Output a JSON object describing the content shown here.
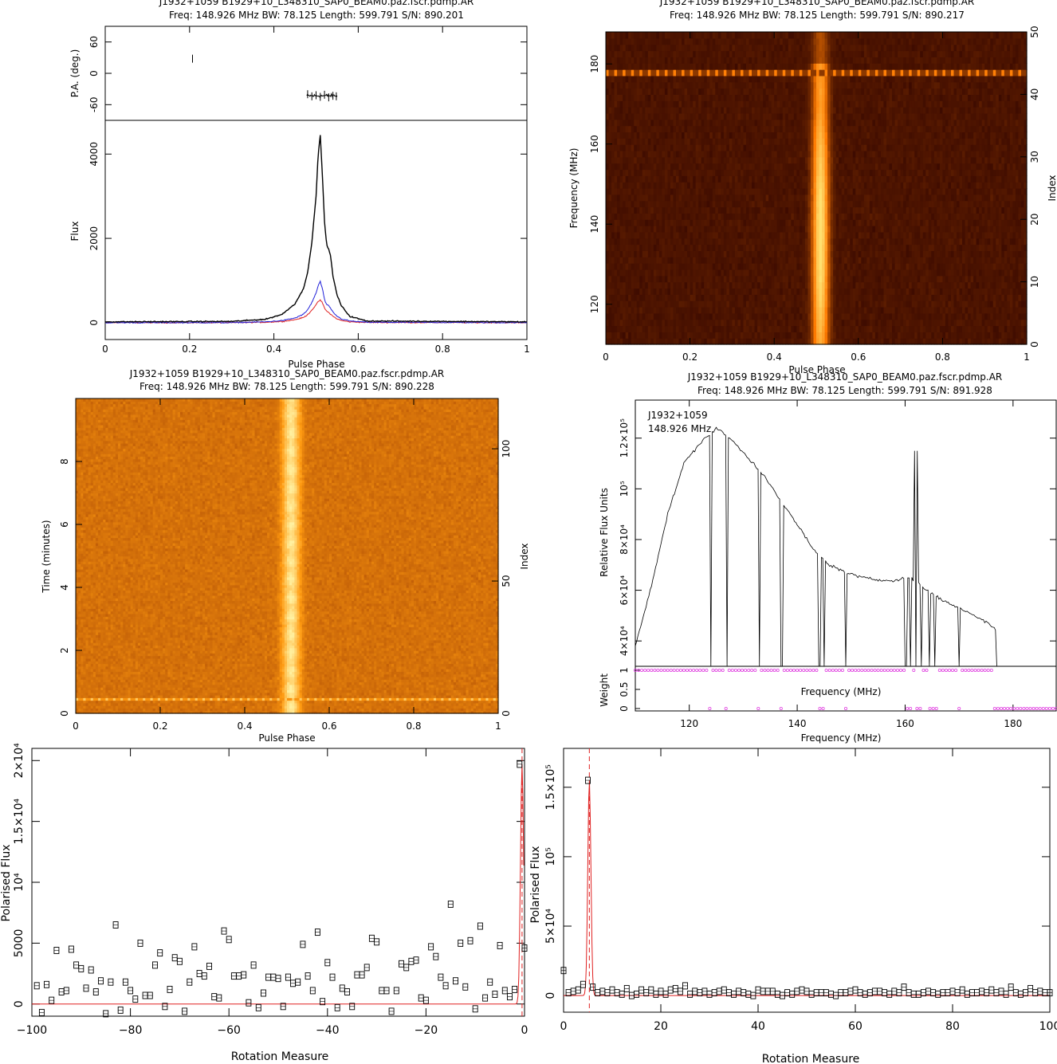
{
  "chart_data": [
    {
      "type": "line",
      "panel": "polarisation-profile",
      "title": "J1932+1059  B1929+10_L348310_SAP0_BEAM0.paz.fscr.pdmp.AR",
      "subtitle": "Freq:  148.926  MHz  BW:  78.125  Length:  599.791  S/N:  890.201",
      "xlabel": "Pulse Phase",
      "xlim": [
        0,
        1
      ],
      "pa_panel": {
        "ylabel": "P.A. (deg.)",
        "ylim": [
          -90,
          90
        ],
        "yticks": [
          "60",
          "0",
          "-60"
        ],
        "x": [
          0.207,
          0.48,
          0.49,
          0.5,
          0.51,
          0.52,
          0.53,
          0.54,
          0.548
        ],
        "values": [
          28,
          -40,
          -44,
          -42,
          -45,
          -41,
          -46,
          -43,
          -44
        ]
      },
      "flux_panel": {
        "ylabel": "Flux",
        "ylim": [
          -400,
          4800
        ],
        "yticks": [
          "0",
          "2000",
          "4000"
        ],
        "x": [
          0,
          0.3,
          0.38,
          0.42,
          0.45,
          0.47,
          0.48,
          0.49,
          0.5,
          0.505,
          0.51,
          0.515,
          0.52,
          0.525,
          0.53,
          0.535,
          0.54,
          0.55,
          0.56,
          0.58,
          0.62,
          1.0
        ],
        "series": [
          {
            "name": "",
            "color": "#000000",
            "values": [
              20,
              30,
              80,
              200,
              450,
              800,
              1200,
              1900,
              3000,
              4000,
              4450,
              3500,
              2400,
              1850,
              1750,
              1550,
              1100,
              650,
              400,
              150,
              40,
              20
            ]
          },
          {
            "name": "",
            "color": "#1f1fd8",
            "values": [
              0,
              0,
              20,
              50,
              110,
              200,
              300,
              480,
              700,
              880,
              980,
              800,
              560,
              420,
              400,
              330,
              250,
              150,
              90,
              40,
              10,
              0
            ]
          },
          {
            "name": "",
            "color": "#e02020",
            "values": [
              0,
              0,
              10,
              30,
              70,
              120,
              190,
              300,
              420,
              500,
              540,
              470,
              350,
              270,
              240,
              200,
              150,
              90,
              50,
              20,
              5,
              0
            ]
          }
        ]
      }
    },
    {
      "type": "heatmap",
      "panel": "phase-frequency",
      "title": "J1932+1059  B1929+10_L348310_SAP0_BEAM0.paz.fscr.pdmp.AR",
      "subtitle": "Freq:  148.926  MHz  BW:  78.125  Length:  599.791  S/N:  890.217",
      "xlabel": "Pulse Phase",
      "ylabel": "Frequency (MHz)",
      "y2label": "Index",
      "xlim": [
        0,
        1
      ],
      "ylim": [
        110,
        188
      ],
      "y2lim": [
        0,
        50
      ],
      "pulse_center": 0.51,
      "pulse_width": 0.018,
      "colors": [
        "#2a0000",
        "#ff7a00",
        "#ffe070"
      ]
    },
    {
      "type": "heatmap",
      "panel": "phase-time",
      "title": "J1932+1059  B1929+10_L348310_SAP0_BEAM0.paz.fscr.pdmp.AR",
      "subtitle": "Freq:  148.926  MHz  BW:  78.125  Length:  599.791  S/N:  890.228",
      "xlabel": "Pulse Phase",
      "ylabel": "Time (minutes)",
      "y2label": "Index",
      "xlim": [
        0,
        1
      ],
      "ylim": [
        0,
        10
      ],
      "y2lim": [
        0,
        119
      ],
      "pulse_center": 0.51,
      "pulse_width": 0.02,
      "colors": [
        "#8a2a00",
        "#ff9a10",
        "#fff0a0"
      ]
    },
    {
      "type": "line",
      "panel": "bandpass",
      "title": "J1932+1059  B1929+10_L348310_SAP0_BEAM0.paz.fscr.pdmp.AR",
      "subtitle": "Freq:  148.926  MHz  BW:  78.125  Length:  599.791  S/N:  891.928",
      "annotation_name": "J1932+1059",
      "annotation_freq": "148.926 MHz",
      "xlabel": "Frequency (MHz)",
      "ylabel": "Relative Flux Units",
      "xlim": [
        110,
        188
      ],
      "ylim": [
        30000,
        135000
      ],
      "x": [
        110,
        113,
        116,
        119,
        122,
        125,
        128,
        131,
        134,
        137,
        140,
        143,
        146,
        149,
        152,
        155,
        158,
        161,
        164,
        167,
        170,
        173,
        176,
        177
      ],
      "values": [
        38000,
        62000,
        90000,
        110000,
        118000,
        124000,
        119000,
        112000,
        105000,
        95000,
        86000,
        76000,
        70000,
        67000,
        65000,
        64000,
        64000,
        65000,
        60000,
        56000,
        53000,
        50000,
        46000,
        44000
      ],
      "weight_panel": {
        "ylabel": "Weight",
        "xlabel": "Frequency (MHz)",
        "ylim": [
          0,
          1
        ],
        "yticks": [
          "0",
          "0.5",
          "1"
        ],
        "marker_color": "#e040e0"
      }
    },
    {
      "type": "scatter",
      "panel": "rm-negative",
      "xlabel": "Rotation Measure",
      "ylabel": "Polarised Flux",
      "xlim": [
        -100,
        0
      ],
      "ylim": [
        -1000,
        21000
      ],
      "x": [
        -99,
        -98,
        -97,
        -96,
        -95,
        -94,
        -93,
        -92,
        -91,
        -90,
        -89,
        -88,
        -87,
        -86,
        -85,
        -84,
        -83,
        -82,
        -81,
        -80,
        -79,
        -78,
        -77,
        -76,
        -75,
        -74,
        -73,
        -72,
        -71,
        -70,
        -69,
        -68,
        -67,
        -66,
        -65,
        -64,
        -63,
        -62,
        -61,
        -60,
        -59,
        -58,
        -57,
        -56,
        -55,
        -54,
        -53,
        -52,
        -51,
        -50,
        -49,
        -48,
        -47,
        -46,
        -45,
        -44,
        -43,
        -42,
        -41,
        -40,
        -39,
        -38,
        -37,
        -36,
        -35,
        -34,
        -33,
        -32,
        -31,
        -30,
        -29,
        -28,
        -27,
        -26,
        -25,
        -24,
        -23,
        -22,
        -21,
        -20,
        -19,
        -18,
        -17,
        -16,
        -15,
        -14,
        -13,
        -12,
        -11,
        -10,
        -9,
        -8,
        -7,
        -6,
        -5,
        -4,
        -3,
        -2,
        -1,
        0
      ],
      "values": [
        1500,
        -700,
        1600,
        300,
        4400,
        1000,
        1100,
        4500,
        3200,
        2900,
        1300,
        2800,
        1000,
        1900,
        -800,
        1800,
        6500,
        -500,
        1800,
        1100,
        400,
        5000,
        700,
        700,
        3200,
        4200,
        -200,
        1200,
        3800,
        3500,
        -600,
        1800,
        4700,
        2500,
        2300,
        3100,
        600,
        500,
        6000,
        5300,
        2300,
        2300,
        2400,
        100,
        3200,
        -300,
        900,
        2200,
        2200,
        2100,
        -200,
        2200,
        1700,
        1800,
        4900,
        2300,
        1100,
        5900,
        200,
        3400,
        2200,
        -300,
        1300,
        1000,
        -200,
        2400,
        2400,
        3000,
        5400,
        5100,
        1100,
        1100,
        -600,
        1100,
        3300,
        3000,
        3500,
        3600,
        500,
        300,
        4700,
        3900,
        2200,
        1500,
        8200,
        1900,
        5000,
        1400,
        5200,
        -400,
        6400,
        500,
        1800,
        800,
        4800,
        1100,
        600,
        1200,
        19700,
        4600
      ],
      "fit_color": "#e02020",
      "marker_rm": -0.5
    },
    {
      "type": "scatter",
      "panel": "rm-positive",
      "xlabel": "Rotation Measure",
      "ylabel": "Polarised Flux",
      "xlim": [
        0,
        100
      ],
      "ylim": [
        -12000,
        178000
      ],
      "x": [
        0,
        1,
        2,
        3,
        4,
        5,
        6,
        7,
        8,
        9,
        10,
        11,
        12,
        13,
        14,
        15,
        16,
        17,
        18,
        19,
        20,
        21,
        22,
        23,
        24,
        25,
        26,
        27,
        28,
        29,
        30,
        31,
        32,
        33,
        34,
        35,
        36,
        37,
        38,
        39,
        40,
        41,
        42,
        43,
        44,
        45,
        46,
        47,
        48,
        49,
        50,
        51,
        52,
        53,
        54,
        55,
        56,
        57,
        58,
        59,
        60,
        61,
        62,
        63,
        64,
        65,
        66,
        67,
        68,
        69,
        70,
        71,
        72,
        73,
        74,
        75,
        76,
        77,
        78,
        79,
        80,
        81,
        82,
        83,
        84,
        85,
        86,
        87,
        88,
        89,
        90,
        91,
        92,
        93,
        94,
        95,
        96,
        97,
        98,
        99,
        100
      ],
      "values": [
        18000,
        2000,
        3000,
        4000,
        8000,
        155000,
        6000,
        2000,
        3000,
        2000,
        4000,
        2000,
        1000,
        5000,
        0,
        1000,
        4000,
        2000,
        4000,
        1000,
        3000,
        1000,
        4000,
        5000,
        3000,
        7000,
        1000,
        3000,
        2000,
        3000,
        1000,
        2000,
        3000,
        4000,
        2000,
        1000,
        3000,
        2000,
        1000,
        0,
        4000,
        3000,
        3000,
        3000,
        1000,
        0,
        2000,
        1000,
        3000,
        4000,
        3000,
        1000,
        2000,
        2000,
        2000,
        1000,
        0,
        2000,
        2000,
        3000,
        4000,
        2000,
        1000,
        2000,
        3000,
        3000,
        2000,
        1000,
        3000,
        2000,
        6000,
        2000,
        1000,
        1000,
        2000,
        3000,
        2000,
        1000,
        2000,
        2000,
        3000,
        2000,
        4000,
        1000,
        2000,
        2000,
        3000,
        2000,
        4000,
        2000,
        3000,
        1000,
        6000,
        2000,
        1000,
        2000,
        5000,
        2000,
        3000,
        2000,
        2000
      ],
      "fit_color": "#e02020",
      "marker_rm": 5.3
    }
  ]
}
